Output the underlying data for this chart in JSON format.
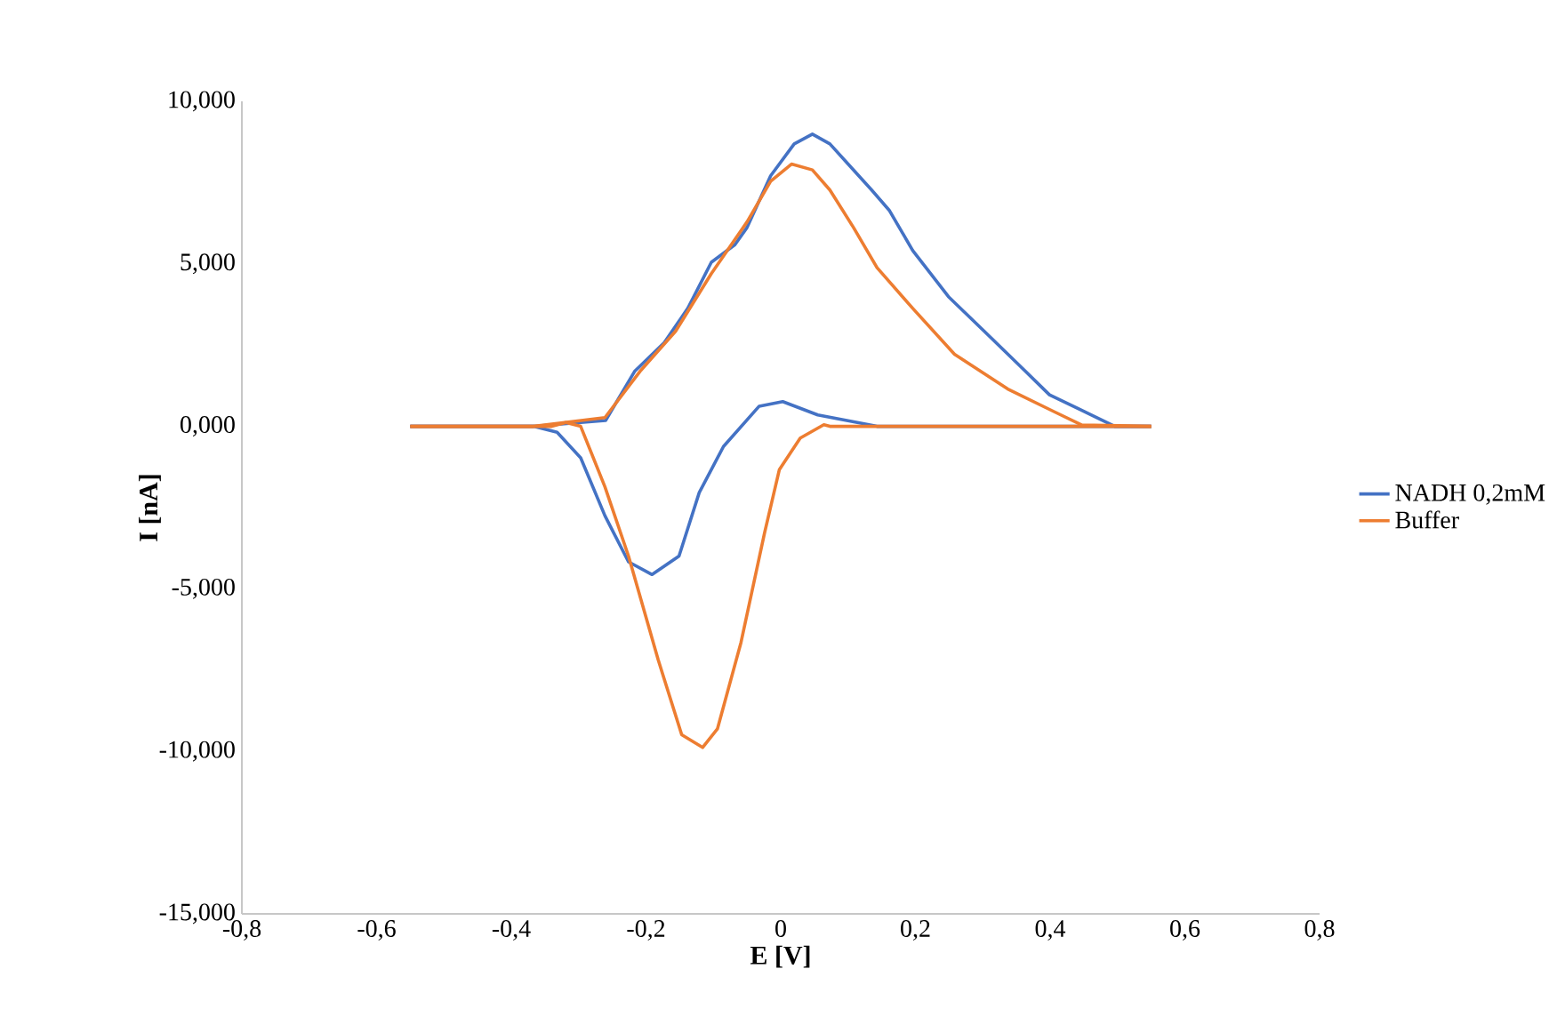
{
  "chart_data": {
    "type": "line",
    "xlabel": "E [V]",
    "ylabel": "I [nA]",
    "xlim": [
      -0.8,
      0.8
    ],
    "xticks": [
      {
        "value": -0.8,
        "label": "-0,8"
      },
      {
        "value": -0.6,
        "label": "-0,6"
      },
      {
        "value": -0.4,
        "label": "-0,4"
      },
      {
        "value": -0.2,
        "label": "-0,2"
      },
      0,
      {
        "value": 0.2,
        "label": "0,2"
      },
      {
        "value": 0.4,
        "label": "0,4"
      },
      {
        "value": 0.6,
        "label": "0,6"
      },
      {
        "value": 0.8,
        "label": "0,8"
      }
    ],
    "ylim": [
      -15,
      10
    ],
    "yticks": [
      {
        "value": -15,
        "label": "-15,000"
      },
      {
        "value": -10,
        "label": "-10,000"
      },
      {
        "value": -5,
        "label": "-5,000"
      },
      {
        "value": 0,
        "label": "0,000"
      },
      {
        "value": 5,
        "label": "5,000"
      },
      {
        "value": 10,
        "label": "10,000"
      }
    ],
    "legend": "right",
    "marker": "none",
    "line_style": "solid",
    "series": [
      {
        "name": "NADH 0,2mM",
        "color": "#4472c4",
        "x": [
          -0.55,
          -0.367,
          -0.26,
          -0.217,
          -0.173,
          -0.138,
          -0.103,
          -0.068,
          -0.05,
          -0.015,
          0.02,
          0.047,
          0.073,
          0.1,
          0.135,
          0.161,
          0.196,
          0.249,
          0.302,
          0.355,
          0.399,
          0.443,
          0.496,
          0.55
        ],
        "values": [
          0,
          0,
          0.18,
          1.69,
          2.57,
          3.63,
          5.05,
          5.59,
          6.12,
          7.71,
          8.69,
          8.99,
          8.69,
          8.07,
          7.27,
          6.65,
          5.41,
          3.99,
          2.93,
          1.86,
          0.97,
          0.53,
          0,
          0
        ]
      },
      {
        "color": "#4472c4",
        "x": [
          -0.55,
          -0.367,
          -0.332,
          -0.297,
          -0.261,
          -0.226,
          -0.191,
          -0.151,
          -0.121,
          -0.085,
          -0.032,
          0.003,
          0.055,
          0.143,
          0.55
        ],
        "values": [
          0,
          0,
          -0.18,
          -0.97,
          -2.75,
          -4.17,
          -4.56,
          -3.99,
          -2.04,
          -0.62,
          0.62,
          0.76,
          0.35,
          0,
          0
        ]
      },
      {
        "name": "Buffer",
        "color": "#ed7d31",
        "x": [
          -0.55,
          -0.367,
          -0.261,
          -0.209,
          -0.156,
          -0.103,
          -0.05,
          -0.015,
          0.016,
          0.047,
          0.073,
          0.108,
          0.143,
          0.196,
          0.258,
          0.337,
          0.407,
          0.447,
          0.55
        ],
        "values": [
          0,
          0,
          0.27,
          1.69,
          2.93,
          4.7,
          6.29,
          7.54,
          8.07,
          7.89,
          7.27,
          6.12,
          4.88,
          3.63,
          2.22,
          1.15,
          0.44,
          0.04,
          0
        ]
      },
      {
        "color": "#ed7d31",
        "x": [
          -0.55,
          -0.34,
          -0.319,
          -0.297,
          -0.261,
          -0.226,
          -0.182,
          -0.147,
          -0.116,
          -0.094,
          -0.059,
          -0.024,
          -0.002,
          0.029,
          0.064,
          0.073,
          0.55
        ],
        "values": [
          0,
          0,
          0.12,
          0,
          -1.86,
          -3.99,
          -7.18,
          -9.49,
          -9.88,
          -9.31,
          -6.65,
          -3.28,
          -1.33,
          -0.36,
          0.05,
          0,
          0
        ]
      }
    ]
  }
}
